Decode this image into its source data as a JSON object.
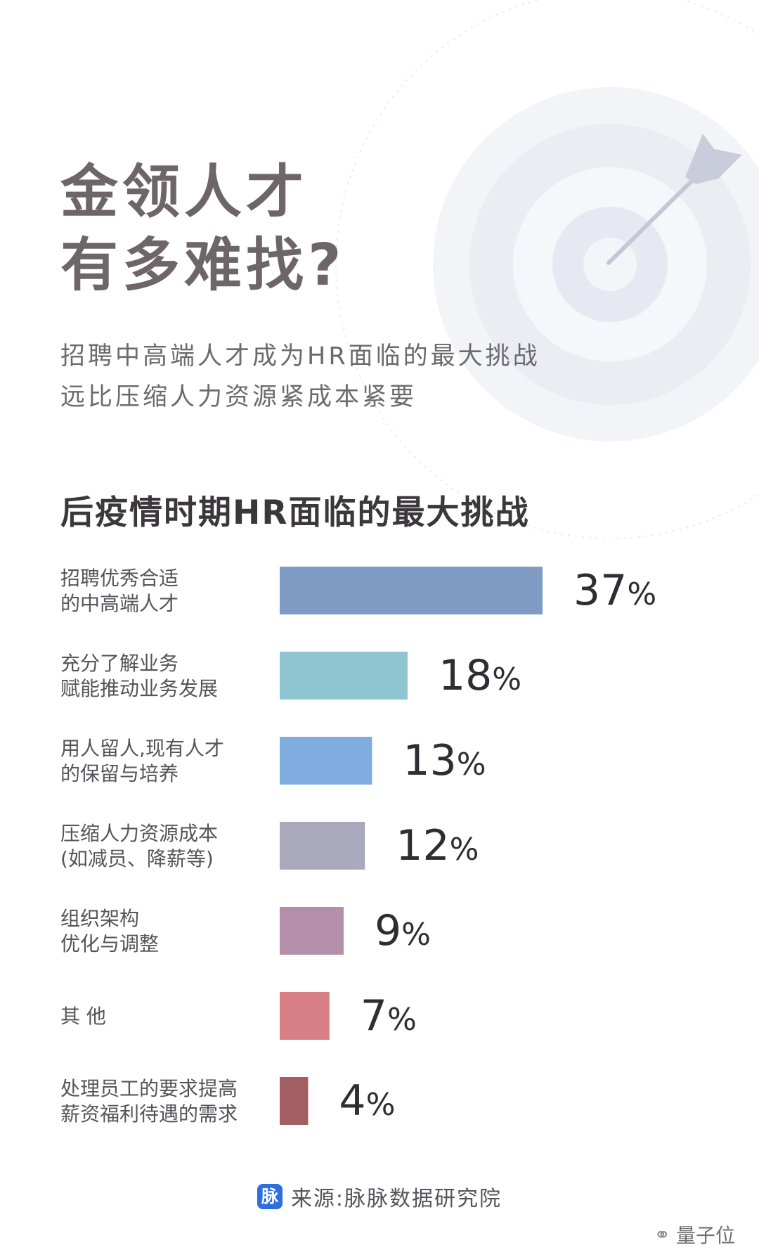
{
  "headline": {
    "line1": "金领人才",
    "line2": "有多难找?"
  },
  "subtitle": {
    "line1": "招聘中高端人才成为HR面临的最大挑战",
    "line2": "远比压缩人力资源紧成本紧要"
  },
  "colors": {
    "bars": [
      "#7f9bc3",
      "#8fc4d1",
      "#7fade0",
      "#a9a8bd",
      "#b48fa9",
      "#d77f84",
      "#a35e62"
    ],
    "target_rings": "#eef0f6",
    "arrow": "#c3c7d6"
  },
  "chart_data": {
    "type": "bar",
    "orientation": "horizontal",
    "title": "后疫情时期HR面临的最大挑战",
    "categories": [
      [
        "招聘优秀合适",
        "的中高端人才"
      ],
      [
        "充分了解业务",
        "赋能推动业务发展"
      ],
      [
        "用人留人,现有人才",
        "的保留与培养"
      ],
      [
        "压缩人力资源成本",
        "(如减员、降薪等)"
      ],
      [
        "组织架构",
        "优化与调整"
      ],
      [
        "其 他"
      ],
      [
        "处理员工的要求提高",
        "薪资福利待遇的需求"
      ]
    ],
    "values": [
      37,
      18,
      13,
      12,
      9,
      7,
      4
    ],
    "unit": "%",
    "xlim": [
      0,
      37
    ],
    "grid": false,
    "legend": "none"
  },
  "footer": {
    "logo_char": "脉",
    "source": "来源:脉脉数据研究院"
  },
  "watermark": {
    "icon": "wechat-icon",
    "text": "量子位"
  }
}
